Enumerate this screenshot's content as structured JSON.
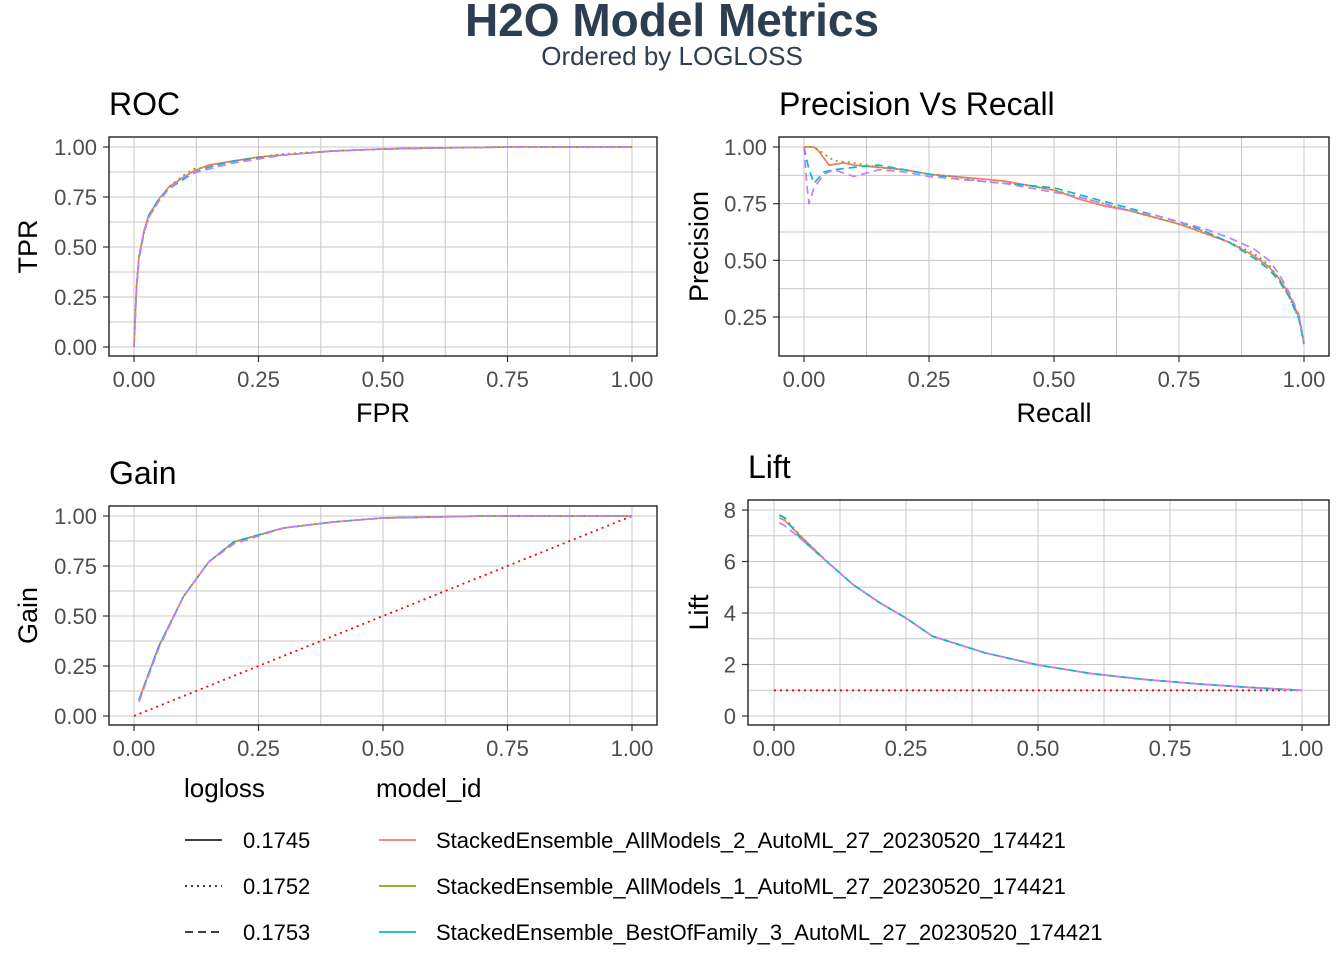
{
  "header": {
    "title": "H2O Model Metrics",
    "subtitle": "Ordered by LOGLOSS"
  },
  "colors": {
    "model_1": "#F8766D",
    "model_2": "#7CAE00",
    "model_3": "#00BFC4",
    "model_4": "#C77CFF",
    "baseline": "#FF0000"
  },
  "legend": {
    "logloss_title": "logloss",
    "model_title": "model_id",
    "logloss_items": [
      {
        "label": "0.1745",
        "dash": "solid"
      },
      {
        "label": "0.1752",
        "dash": "dotted"
      },
      {
        "label": "0.1753",
        "dash": "dashed"
      }
    ],
    "model_items": [
      {
        "label": "StackedEnsemble_AllModels_2_AutoML_27_20230520_174421",
        "color": "#F8766D"
      },
      {
        "label": "StackedEnsemble_AllModels_1_AutoML_27_20230520_174421",
        "color": "#7CAE00"
      },
      {
        "label": "StackedEnsemble_BestOfFamily_3_AutoML_27_20230520_174421",
        "color": "#00BFC4"
      }
    ]
  },
  "chart_data": [
    {
      "id": "roc",
      "type": "line",
      "title": "ROC",
      "xlabel": "FPR",
      "ylabel": "TPR",
      "xlim": [
        0,
        1
      ],
      "ylim": [
        0,
        1
      ],
      "xticks": [
        "0.00",
        "0.25",
        "0.50",
        "0.75",
        "1.00"
      ],
      "yticks": [
        "0.00",
        "0.25",
        "0.50",
        "0.75",
        "1.00"
      ],
      "series": [
        {
          "color": "#F8766D",
          "dash": "solid",
          "x": [
            0,
            0.005,
            0.01,
            0.02,
            0.03,
            0.05,
            0.07,
            0.1,
            0.12,
            0.15,
            0.2,
            0.25,
            0.3,
            0.4,
            0.5,
            0.6,
            0.75,
            1.0
          ],
          "y": [
            0,
            0.3,
            0.45,
            0.58,
            0.66,
            0.74,
            0.8,
            0.85,
            0.88,
            0.91,
            0.93,
            0.95,
            0.96,
            0.98,
            0.99,
            0.995,
            1.0,
            1.0
          ]
        },
        {
          "color": "#7CAE00",
          "dash": "dotted",
          "x": [
            0,
            0.005,
            0.01,
            0.02,
            0.03,
            0.05,
            0.07,
            0.1,
            0.12,
            0.15,
            0.2,
            0.25,
            0.3,
            0.4,
            0.5,
            0.6,
            0.75,
            1.0
          ],
          "y": [
            0,
            0.31,
            0.46,
            0.57,
            0.65,
            0.73,
            0.8,
            0.86,
            0.89,
            0.9,
            0.93,
            0.95,
            0.965,
            0.98,
            0.99,
            0.995,
            1.0,
            1.0
          ]
        },
        {
          "color": "#00BFC4",
          "dash": "dashed",
          "x": [
            0,
            0.005,
            0.01,
            0.02,
            0.03,
            0.05,
            0.07,
            0.1,
            0.12,
            0.15,
            0.2,
            0.25,
            0.3,
            0.4,
            0.5,
            0.6,
            0.75,
            1.0
          ],
          "y": [
            0,
            0.29,
            0.44,
            0.57,
            0.66,
            0.74,
            0.79,
            0.84,
            0.87,
            0.9,
            0.93,
            0.945,
            0.96,
            0.98,
            0.99,
            0.995,
            1.0,
            1.0
          ]
        },
        {
          "color": "#C77CFF",
          "dash": "dashed",
          "x": [
            0,
            0.005,
            0.01,
            0.02,
            0.03,
            0.05,
            0.07,
            0.1,
            0.12,
            0.15,
            0.2,
            0.25,
            0.3,
            0.4,
            0.5,
            0.6,
            0.75,
            1.0
          ],
          "y": [
            0,
            0.3,
            0.45,
            0.58,
            0.65,
            0.73,
            0.79,
            0.85,
            0.87,
            0.89,
            0.92,
            0.94,
            0.96,
            0.98,
            0.99,
            0.995,
            1.0,
            1.0
          ]
        }
      ]
    },
    {
      "id": "pr",
      "type": "line",
      "title": "Precision Vs Recall",
      "xlabel": "Recall",
      "ylabel": "Precision",
      "xlim": [
        0,
        1
      ],
      "ylim": [
        0.12,
        1.02
      ],
      "xticks": [
        "0.00",
        "0.25",
        "0.50",
        "0.75",
        "1.00"
      ],
      "yticks": [
        "0.25",
        "0.50",
        "0.75",
        "1.00"
      ],
      "series": [
        {
          "color": "#F8766D",
          "dash": "solid",
          "x": [
            0,
            0.02,
            0.03,
            0.05,
            0.08,
            0.1,
            0.15,
            0.2,
            0.25,
            0.3,
            0.35,
            0.4,
            0.45,
            0.5,
            0.55,
            0.6,
            0.65,
            0.7,
            0.75,
            0.8,
            0.85,
            0.9,
            0.93,
            0.95,
            0.97,
            0.99,
            1.0
          ],
          "y": [
            1.0,
            1.0,
            0.98,
            0.92,
            0.93,
            0.92,
            0.91,
            0.9,
            0.88,
            0.87,
            0.86,
            0.85,
            0.83,
            0.81,
            0.77,
            0.74,
            0.72,
            0.69,
            0.66,
            0.62,
            0.58,
            0.52,
            0.47,
            0.42,
            0.35,
            0.25,
            0.13
          ]
        },
        {
          "color": "#7CAE00",
          "dash": "dotted",
          "x": [
            0,
            0.02,
            0.04,
            0.06,
            0.1,
            0.15,
            0.2,
            0.25,
            0.3,
            0.35,
            0.4,
            0.45,
            0.5,
            0.55,
            0.6,
            0.65,
            0.7,
            0.75,
            0.8,
            0.85,
            0.9,
            0.93,
            0.95,
            0.97,
            0.99,
            1.0
          ],
          "y": [
            1.0,
            1.0,
            0.97,
            0.94,
            0.93,
            0.91,
            0.9,
            0.88,
            0.87,
            0.85,
            0.84,
            0.83,
            0.81,
            0.78,
            0.75,
            0.72,
            0.69,
            0.66,
            0.63,
            0.58,
            0.53,
            0.48,
            0.42,
            0.34,
            0.24,
            0.13
          ]
        },
        {
          "color": "#00BFC4",
          "dash": "dashed",
          "x": [
            0,
            0.01,
            0.02,
            0.04,
            0.06,
            0.1,
            0.15,
            0.2,
            0.25,
            0.3,
            0.35,
            0.4,
            0.45,
            0.5,
            0.55,
            0.6,
            0.65,
            0.7,
            0.75,
            0.8,
            0.85,
            0.9,
            0.93,
            0.95,
            0.97,
            0.99,
            1.0
          ],
          "y": [
            1.0,
            0.9,
            0.84,
            0.89,
            0.9,
            0.91,
            0.92,
            0.9,
            0.88,
            0.86,
            0.85,
            0.84,
            0.83,
            0.82,
            0.79,
            0.76,
            0.73,
            0.7,
            0.67,
            0.63,
            0.58,
            0.51,
            0.46,
            0.41,
            0.34,
            0.24,
            0.13
          ]
        },
        {
          "color": "#C77CFF",
          "dash": "dashed",
          "x": [
            0,
            0.005,
            0.01,
            0.02,
            0.04,
            0.06,
            0.1,
            0.15,
            0.2,
            0.25,
            0.3,
            0.35,
            0.4,
            0.45,
            0.5,
            0.55,
            0.6,
            0.65,
            0.7,
            0.75,
            0.8,
            0.85,
            0.9,
            0.93,
            0.95,
            0.97,
            0.99,
            1.0
          ],
          "y": [
            1.0,
            0.85,
            0.75,
            0.82,
            0.88,
            0.9,
            0.87,
            0.9,
            0.89,
            0.87,
            0.86,
            0.85,
            0.84,
            0.82,
            0.8,
            0.78,
            0.75,
            0.72,
            0.7,
            0.67,
            0.64,
            0.6,
            0.55,
            0.5,
            0.44,
            0.36,
            0.26,
            0.14
          ]
        }
      ]
    },
    {
      "id": "gain",
      "type": "line",
      "title": "Gain",
      "xlabel": "",
      "ylabel": "Gain",
      "xlim": [
        0,
        1
      ],
      "ylim": [
        0,
        1
      ],
      "xticks": [
        "0.00",
        "0.25",
        "0.50",
        "0.75",
        "1.00"
      ],
      "yticks": [
        "0.00",
        "0.25",
        "0.50",
        "0.75",
        "1.00"
      ],
      "baseline": {
        "x": [
          0,
          1
        ],
        "y": [
          0,
          1
        ]
      },
      "series": [
        {
          "color": "#F8766D",
          "dash": "solid",
          "x": [
            0.01,
            0.02,
            0.05,
            0.1,
            0.15,
            0.2,
            0.3,
            0.4,
            0.5,
            0.6,
            0.7,
            0.8,
            0.9,
            1.0
          ],
          "y": [
            0.08,
            0.15,
            0.35,
            0.6,
            0.77,
            0.87,
            0.94,
            0.97,
            0.99,
            0.995,
            1.0,
            1.0,
            1.0,
            1.0
          ]
        },
        {
          "color": "#7CAE00",
          "dash": "dotted",
          "x": [
            0.01,
            0.02,
            0.05,
            0.1,
            0.15,
            0.2,
            0.3,
            0.4,
            0.5,
            0.6,
            0.7,
            0.8,
            0.9,
            1.0
          ],
          "y": [
            0.08,
            0.15,
            0.35,
            0.6,
            0.77,
            0.87,
            0.94,
            0.97,
            0.99,
            0.995,
            1.0,
            1.0,
            1.0,
            1.0
          ]
        },
        {
          "color": "#00BFC4",
          "dash": "dashed",
          "x": [
            0.01,
            0.02,
            0.05,
            0.1,
            0.15,
            0.2,
            0.3,
            0.4,
            0.5,
            0.6,
            0.7,
            0.8,
            0.9,
            1.0
          ],
          "y": [
            0.08,
            0.15,
            0.35,
            0.6,
            0.77,
            0.87,
            0.94,
            0.97,
            0.99,
            0.995,
            1.0,
            1.0,
            1.0,
            1.0
          ]
        },
        {
          "color": "#C77CFF",
          "dash": "dashed",
          "x": [
            0.01,
            0.02,
            0.05,
            0.1,
            0.15,
            0.2,
            0.3,
            0.4,
            0.5,
            0.6,
            0.7,
            0.8,
            0.9,
            1.0
          ],
          "y": [
            0.07,
            0.14,
            0.34,
            0.6,
            0.77,
            0.86,
            0.94,
            0.97,
            0.99,
            0.995,
            1.0,
            1.0,
            1.0,
            1.0
          ]
        }
      ]
    },
    {
      "id": "lift",
      "type": "line",
      "title": "Lift",
      "xlabel": "",
      "ylabel": "Lift",
      "xlim": [
        0,
        1
      ],
      "ylim": [
        0,
        8
      ],
      "xticks": [
        "0.00",
        "0.25",
        "0.50",
        "0.75",
        "1.00"
      ],
      "yticks": [
        "0",
        "2",
        "4",
        "6",
        "8"
      ],
      "ytickvalues": [
        0,
        2,
        4,
        6,
        8
      ],
      "baseline": {
        "x": [
          0,
          1
        ],
        "y": [
          1,
          1
        ]
      },
      "series": [
        {
          "color": "#F8766D",
          "dash": "solid",
          "x": [
            0.01,
            0.02,
            0.05,
            0.1,
            0.15,
            0.2,
            0.25,
            0.3,
            0.4,
            0.5,
            0.6,
            0.7,
            0.8,
            0.9,
            1.0
          ],
          "y": [
            7.7,
            7.6,
            7.0,
            6.0,
            5.1,
            4.4,
            3.8,
            3.1,
            2.45,
            1.98,
            1.65,
            1.42,
            1.25,
            1.11,
            1.0
          ]
        },
        {
          "color": "#7CAE00",
          "dash": "dotted",
          "x": [
            0.01,
            0.02,
            0.05,
            0.1,
            0.15,
            0.2,
            0.25,
            0.3,
            0.4,
            0.5,
            0.6,
            0.7,
            0.8,
            0.9,
            1.0
          ],
          "y": [
            7.8,
            7.7,
            7.0,
            6.0,
            5.1,
            4.4,
            3.8,
            3.1,
            2.45,
            1.98,
            1.65,
            1.42,
            1.25,
            1.11,
            1.0
          ]
        },
        {
          "color": "#00BFC4",
          "dash": "dashed",
          "x": [
            0.01,
            0.02,
            0.05,
            0.1,
            0.15,
            0.2,
            0.25,
            0.3,
            0.4,
            0.5,
            0.6,
            0.7,
            0.8,
            0.9,
            1.0
          ],
          "y": [
            7.8,
            7.7,
            6.9,
            6.0,
            5.1,
            4.4,
            3.8,
            3.1,
            2.45,
            1.98,
            1.65,
            1.42,
            1.25,
            1.11,
            1.0
          ]
        },
        {
          "color": "#C77CFF",
          "dash": "dashed",
          "x": [
            0.01,
            0.02,
            0.05,
            0.1,
            0.15,
            0.2,
            0.25,
            0.3,
            0.4,
            0.5,
            0.6,
            0.7,
            0.8,
            0.9,
            1.0
          ],
          "y": [
            7.5,
            7.4,
            6.9,
            6.0,
            5.1,
            4.4,
            3.8,
            3.1,
            2.45,
            1.98,
            1.65,
            1.42,
            1.25,
            1.11,
            1.0
          ]
        }
      ]
    }
  ]
}
